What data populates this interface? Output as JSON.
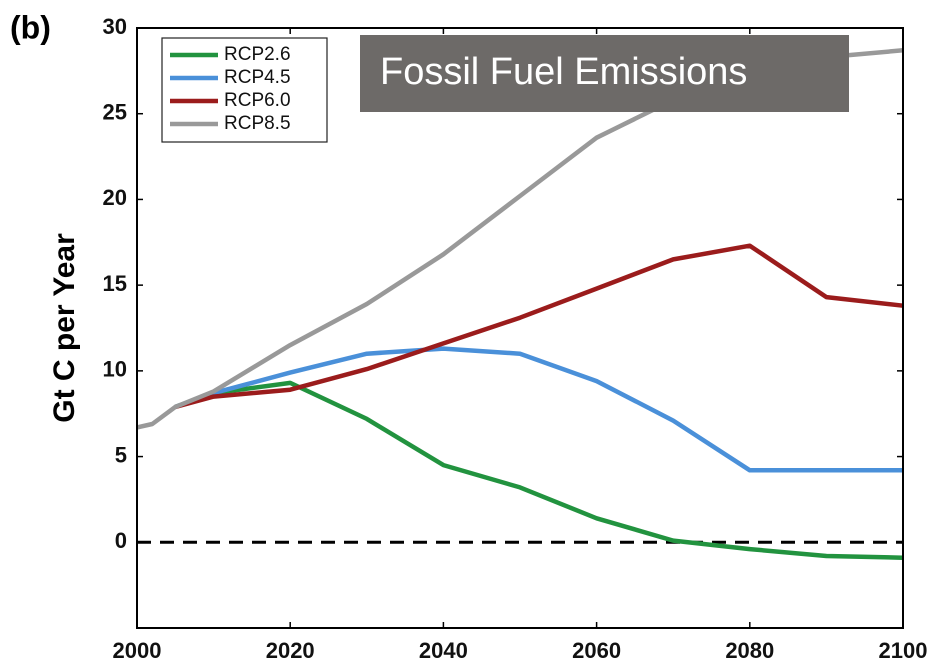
{
  "chart_data": {
    "type": "line",
    "panel_label": "(b)",
    "annotation": "Fossil Fuel Emissions",
    "ylabel": "Gt C per Year",
    "x": [
      2000,
      2002,
      2005,
      2010,
      2020,
      2030,
      2040,
      2050,
      2060,
      2070,
      2080,
      2090,
      2100
    ],
    "series": [
      {
        "name": "RCP2.6",
        "color": "#22933f",
        "values": [
          null,
          null,
          7.9,
          8.7,
          9.3,
          7.2,
          4.5,
          3.2,
          1.4,
          0.1,
          -0.4,
          -0.8,
          -0.9
        ]
      },
      {
        "name": "RCP4.5",
        "color": "#4a90d9",
        "values": [
          null,
          null,
          7.9,
          8.7,
          9.9,
          11.0,
          11.3,
          11.0,
          9.4,
          7.1,
          4.2,
          4.2,
          4.2
        ]
      },
      {
        "name": "RCP6.0",
        "color": "#9b1c1c",
        "values": [
          null,
          null,
          7.9,
          8.5,
          8.9,
          10.1,
          11.6,
          13.1,
          14.8,
          16.5,
          17.3,
          14.3,
          13.8
        ]
      },
      {
        "name": "RCP8.5",
        "color": "#999999",
        "values": [
          6.7,
          6.9,
          7.9,
          8.8,
          11.5,
          13.9,
          16.8,
          20.2,
          23.6,
          25.8,
          27.4,
          28.3,
          28.7
        ]
      }
    ],
    "xlim": [
      2000,
      2100
    ],
    "xticks": [
      2000,
      2020,
      2040,
      2060,
      2080,
      2100
    ],
    "ylim": [
      -5,
      30
    ],
    "yticks": [
      0,
      5,
      10,
      15,
      20,
      25,
      30
    ],
    "zero_line": true,
    "legend": "upper left"
  }
}
